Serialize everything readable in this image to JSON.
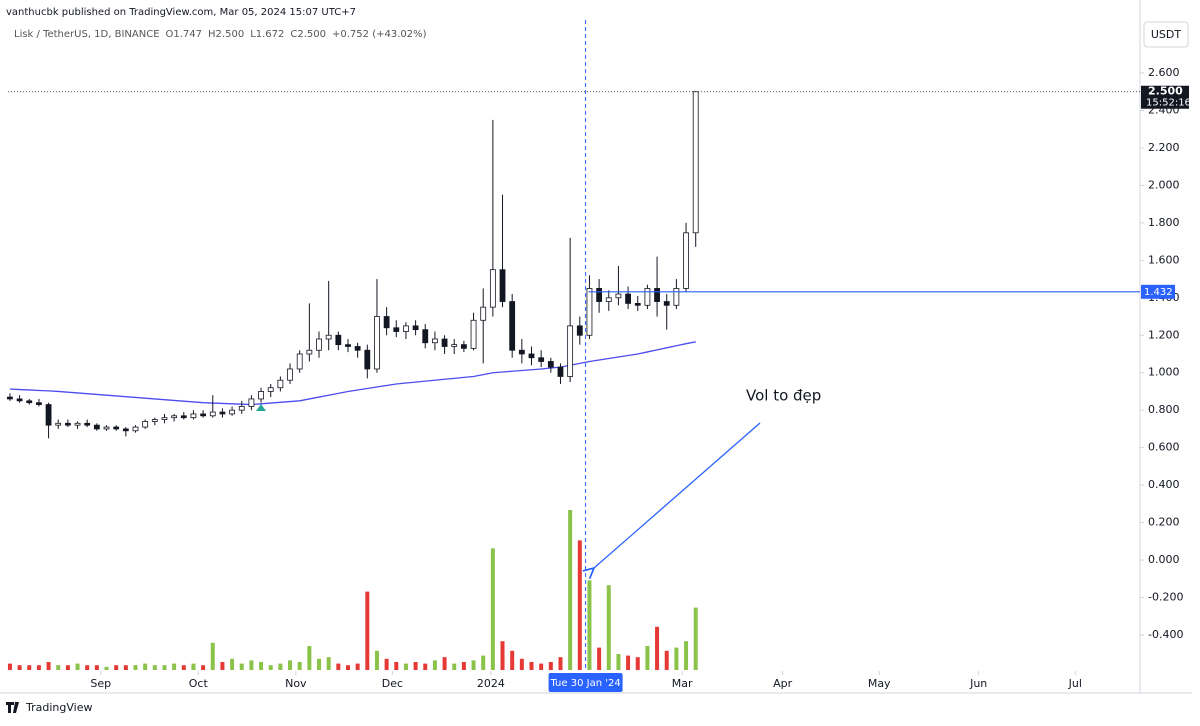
{
  "header": {
    "publisher": "vanthucbk published on TradingView.com, Mar 05, 2024 15:07 UTC+7",
    "symbol": "Lisk / TetherUS, 1D, BINANCE",
    "open": "O1.747",
    "high": "H2.500",
    "low": "L1.672",
    "close": "C2.500",
    "change": "+0.752 (+43.02%)",
    "currency": "USDT",
    "brand": "TradingView"
  },
  "chart_data": {
    "type": "candlestick",
    "open": [
      0.87,
      0.86,
      0.85,
      0.84,
      0.83,
      0.72,
      0.73,
      0.72,
      0.73,
      0.72,
      0.7,
      0.71,
      0.7,
      0.69,
      0.71,
      0.74,
      0.75,
      0.76,
      0.77,
      0.76,
      0.78,
      0.77,
      0.79,
      0.78,
      0.8,
      0.82,
      0.86,
      0.9,
      0.92,
      0.96,
      1.02,
      1.1,
      1.12,
      1.18,
      1.2,
      1.15,
      1.14,
      1.12,
      1.02,
      1.3,
      1.24,
      1.22,
      1.25,
      1.23,
      1.16,
      1.18,
      1.14,
      1.15,
      1.13,
      1.28,
      1.35,
      1.55,
      1.38,
      1.12,
      1.1,
      1.08,
      1.06,
      1.03,
      0.98,
      1.25,
      1.2,
      1.45,
      1.38,
      1.4,
      1.42,
      1.37,
      1.36,
      1.45,
      1.38,
      1.36,
      1.45,
      1.747
    ],
    "high": [
      0.89,
      0.88,
      0.86,
      0.86,
      0.84,
      0.75,
      0.75,
      0.74,
      0.75,
      0.73,
      0.72,
      0.72,
      0.71,
      0.72,
      0.75,
      0.76,
      0.78,
      0.78,
      0.79,
      0.8,
      0.8,
      0.88,
      0.81,
      0.82,
      0.85,
      0.88,
      0.92,
      0.94,
      0.98,
      1.05,
      1.12,
      1.37,
      1.22,
      1.49,
      1.22,
      1.18,
      1.16,
      1.15,
      1.5,
      1.35,
      1.28,
      1.27,
      1.28,
      1.26,
      1.22,
      1.2,
      1.18,
      1.17,
      1.32,
      1.45,
      2.35,
      1.95,
      1.42,
      1.18,
      1.14,
      1.12,
      1.08,
      1.05,
      1.72,
      1.3,
      1.52,
      1.5,
      1.44,
      1.57,
      1.46,
      1.41,
      1.47,
      1.62,
      1.42,
      1.5,
      1.8,
      2.5
    ],
    "low": [
      0.85,
      0.84,
      0.83,
      0.82,
      0.65,
      0.7,
      0.71,
      0.7,
      0.71,
      0.69,
      0.69,
      0.69,
      0.66,
      0.68,
      0.7,
      0.72,
      0.73,
      0.74,
      0.75,
      0.75,
      0.76,
      0.76,
      0.76,
      0.77,
      0.78,
      0.8,
      0.84,
      0.87,
      0.9,
      0.94,
      1.0,
      1.06,
      1.08,
      1.12,
      1.12,
      1.11,
      1.08,
      0.97,
      1.0,
      1.2,
      1.19,
      1.18,
      1.2,
      1.13,
      1.12,
      1.1,
      1.1,
      1.11,
      1.12,
      1.05,
      1.3,
      1.35,
      1.08,
      1.05,
      1.04,
      1.03,
      1.0,
      0.94,
      0.95,
      1.15,
      1.18,
      1.32,
      1.33,
      1.36,
      1.34,
      1.33,
      1.34,
      1.3,
      1.23,
      1.34,
      1.43,
      1.672
    ],
    "close": [
      0.86,
      0.85,
      0.84,
      0.83,
      0.72,
      0.73,
      0.72,
      0.73,
      0.72,
      0.7,
      0.71,
      0.7,
      0.69,
      0.71,
      0.74,
      0.75,
      0.76,
      0.77,
      0.76,
      0.78,
      0.77,
      0.79,
      0.78,
      0.8,
      0.82,
      0.86,
      0.9,
      0.92,
      0.96,
      1.02,
      1.1,
      1.12,
      1.18,
      1.2,
      1.15,
      1.14,
      1.12,
      1.02,
      1.3,
      1.24,
      1.22,
      1.25,
      1.23,
      1.16,
      1.18,
      1.14,
      1.15,
      1.13,
      1.28,
      1.35,
      1.55,
      1.38,
      1.12,
      1.1,
      1.08,
      1.06,
      1.03,
      0.98,
      1.25,
      1.2,
      1.45,
      1.38,
      1.4,
      1.42,
      1.37,
      1.36,
      1.45,
      1.38,
      1.36,
      1.45,
      1.747,
      2.5
    ],
    "volume": [
      4,
      3,
      3,
      3,
      5,
      3,
      3,
      4,
      3,
      3,
      2,
      3,
      3,
      3,
      4,
      3,
      3,
      4,
      3,
      4,
      3,
      17,
      5,
      7,
      4,
      6,
      5,
      3,
      4,
      6,
      5,
      15,
      7,
      8,
      4,
      3,
      4,
      49,
      12,
      7,
      5,
      4,
      5,
      4,
      6,
      8,
      4,
      5,
      6,
      9,
      76,
      18,
      12,
      7,
      5,
      4,
      5,
      8,
      100,
      81,
      56,
      14,
      53,
      10,
      9,
      8,
      15,
      27,
      12,
      14,
      18,
      39
    ],
    "ma": {
      "color": "#4c4cf0",
      "values": [
        0.913,
        0.91,
        0.908,
        0.905,
        0.903,
        0.9,
        0.896,
        0.892,
        0.888,
        0.884,
        0.88,
        0.876,
        0.872,
        0.868,
        0.864,
        0.86,
        0.856,
        0.852,
        0.848,
        0.844,
        0.84,
        0.838,
        0.836,
        0.834,
        0.832,
        0.83,
        0.834,
        0.838,
        0.842,
        0.846,
        0.85,
        0.86,
        0.87,
        0.88,
        0.89,
        0.9,
        0.908,
        0.916,
        0.924,
        0.932,
        0.94,
        0.945,
        0.95,
        0.955,
        0.96,
        0.965,
        0.97,
        0.975,
        0.98,
        0.99,
        1.0,
        1.004,
        1.008,
        1.012,
        1.016,
        1.02,
        1.025,
        1.03,
        1.04,
        1.05,
        1.06,
        1.068,
        1.076,
        1.084,
        1.092,
        1.1,
        1.111,
        1.122,
        1.133,
        1.144,
        1.155,
        1.165
      ]
    },
    "up_color": "#ffffff",
    "down_color": "#131722",
    "vol_up_color": "#8bc34a",
    "vol_down_color": "#e53935",
    "ylim": [
      -0.587,
      2.883
    ],
    "volume_lim": [
      0,
      100
    ],
    "xlim": [
      -0.2,
      117
    ],
    "yticks": [
      {
        "value": -0.4,
        "label": "-0.400"
      },
      {
        "value": -0.2,
        "label": "-0.200"
      },
      {
        "value": 0,
        "label": "0.000"
      },
      {
        "value": 0.2,
        "label": "0.200"
      },
      {
        "value": 0.4,
        "label": "0.400"
      },
      {
        "value": 0.6,
        "label": "0.600"
      },
      {
        "value": 0.8,
        "label": "0.800"
      },
      {
        "value": 1.0,
        "label": "1.000"
      },
      {
        "value": 1.2,
        "label": "1.200"
      },
      {
        "value": 1.4,
        "label": "1.400"
      },
      {
        "value": 1.6,
        "label": "1.600"
      },
      {
        "value": 1.8,
        "label": "1.800"
      },
      {
        "value": 2.0,
        "label": "2.000"
      },
      {
        "value": 2.2,
        "label": "2.200"
      },
      {
        "value": 2.4,
        "label": "2.400"
      },
      {
        "value": 2.6,
        "label": "2.600"
      }
    ],
    "xticks": [
      {
        "value": 9.4,
        "label": "Sep"
      },
      {
        "value": 19.5,
        "label": "Oct"
      },
      {
        "value": 29.6,
        "label": "Nov"
      },
      {
        "value": 39.6,
        "label": "Dec"
      },
      {
        "value": 49.8,
        "label": "2024"
      },
      {
        "value": 69.6,
        "label": "Mar"
      },
      {
        "value": 80,
        "label": "Apr"
      },
      {
        "value": 90,
        "label": "May"
      },
      {
        "value": 100.3,
        "label": "Jun"
      },
      {
        "value": 110.3,
        "label": "Jul"
      }
    ],
    "crosshair": {
      "value": 59.6,
      "label": "Tue 30 Jan '24"
    },
    "hline": {
      "value": 1.432,
      "color": "#2962ff"
    },
    "last_price": {
      "value": 2.5,
      "label": "2.500",
      "timer": "15:52:16"
    },
    "annotation": "Vol to đẹp"
  }
}
